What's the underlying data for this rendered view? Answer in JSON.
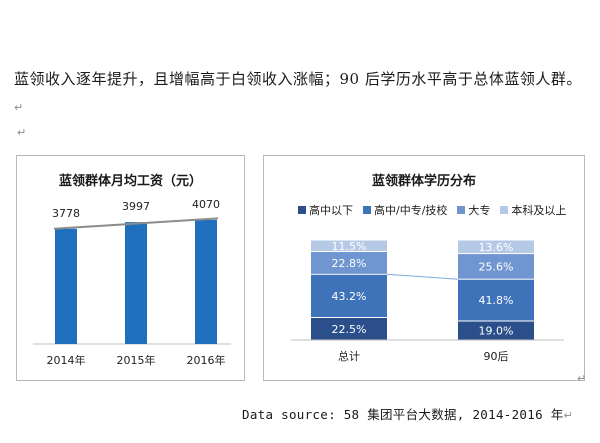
{
  "intro": {
    "text": "蓝领收入逐年提升，且增幅高于白领收入涨幅；90 后学历水平高于总体蓝领人群。",
    "para_mark": "↵"
  },
  "return_mark": "↵",
  "corner_mark": "↵",
  "source": {
    "text": "Data source: 58 集团平台大数据, 2014-2016 年",
    "para_mark": "↵"
  },
  "chart_data": [
    {
      "type": "bar",
      "title": "蓝领群体月均工资（元）",
      "categories": [
        "2014年",
        "2015年",
        "2016年"
      ],
      "values": [
        3778,
        3997,
        4070
      ],
      "data_labels": [
        "3778",
        "3997",
        "4070"
      ],
      "trendline": true,
      "legend": "none",
      "axis_visible": false,
      "colors": {
        "bar": "#1f6fbf",
        "trend": "#8c8c8c",
        "axis": "#bfbfbf"
      }
    },
    {
      "type": "bar",
      "stacked": true,
      "percent": true,
      "title": "蓝领群体学历分布",
      "categories": [
        "总计",
        "90后"
      ],
      "series": [
        {
          "name": "高中以下",
          "values": [
            22.5,
            19.0
          ],
          "labels": [
            "22.5%",
            "19.0%"
          ],
          "color": "#2a4f8a"
        },
        {
          "name": "高中/中专/技校",
          "values": [
            43.2,
            41.8
          ],
          "labels": [
            "43.2%",
            "41.8%"
          ],
          "color": "#3e73ba"
        },
        {
          "name": "大专",
          "values": [
            22.8,
            25.6
          ],
          "labels": [
            "22.8%",
            "25.6%"
          ],
          "color": "#6f96d0"
        },
        {
          "name": "本科及以上",
          "values": [
            11.5,
            13.6
          ],
          "labels": [
            "11.5%",
            "13.6%"
          ],
          "color": "#b5c8e6"
        }
      ],
      "legend": "top",
      "series_lines": true,
      "colors": {
        "line": "#7fa9da",
        "axis": "#bfbfbf"
      }
    }
  ]
}
